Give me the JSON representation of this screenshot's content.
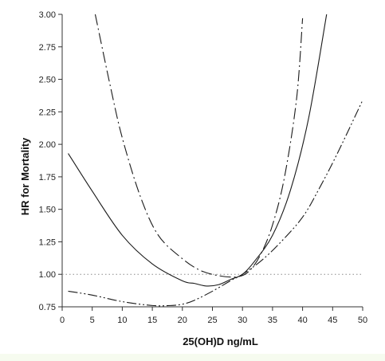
{
  "chart_data": {
    "type": "line",
    "xlabel": "25(OH)D ng/mL",
    "ylabel": "HR for Mortality",
    "xlim": [
      0,
      50
    ],
    "ylim": [
      0.75,
      3.0
    ],
    "x_ticks": [
      0,
      5,
      10,
      15,
      20,
      25,
      30,
      35,
      40,
      45,
      50
    ],
    "y_ticks": [
      "0.75",
      "1.00",
      "1.25",
      "1.50",
      "1.75",
      "2.00",
      "2.25",
      "2.50",
      "2.75",
      "3.00"
    ],
    "reference_line": {
      "y": 1.0,
      "style": "dotted"
    },
    "grid": false,
    "legend": "none",
    "series": [
      {
        "style": "solid",
        "points": [
          [
            1,
            1.93
          ],
          [
            5,
            1.64
          ],
          [
            10,
            1.3
          ],
          [
            15,
            1.08
          ],
          [
            20,
            0.95
          ],
          [
            22,
            0.93
          ],
          [
            24,
            0.91
          ],
          [
            26,
            0.92
          ],
          [
            28,
            0.96
          ],
          [
            30,
            1.0
          ],
          [
            32,
            1.1
          ],
          [
            35,
            1.3
          ],
          [
            38,
            1.65
          ],
          [
            41,
            2.2
          ],
          [
            44,
            3.0
          ]
        ]
      },
      {
        "style": "dash-dot",
        "points": [
          [
            5.5,
            3.0
          ],
          [
            8,
            2.45
          ],
          [
            10,
            2.05
          ],
          [
            13,
            1.6
          ],
          [
            16,
            1.3
          ],
          [
            20,
            1.12
          ],
          [
            23,
            1.03
          ],
          [
            26,
            0.99
          ],
          [
            29,
            0.98
          ],
          [
            31,
            1.02
          ],
          [
            33,
            1.15
          ],
          [
            35,
            1.38
          ],
          [
            37,
            1.75
          ],
          [
            39,
            2.35
          ],
          [
            40,
            2.97
          ]
        ]
      },
      {
        "style": "dash-dot-dot",
        "points": [
          [
            1,
            0.87
          ],
          [
            5,
            0.84
          ],
          [
            10,
            0.79
          ],
          [
            15,
            0.76
          ],
          [
            18,
            0.76
          ],
          [
            20,
            0.77
          ],
          [
            22,
            0.8
          ],
          [
            25,
            0.87
          ],
          [
            28,
            0.95
          ],
          [
            30,
            1.0
          ],
          [
            33,
            1.1
          ],
          [
            36,
            1.23
          ],
          [
            40,
            1.44
          ],
          [
            43,
            1.68
          ],
          [
            46,
            1.95
          ],
          [
            50,
            2.34
          ]
        ]
      }
    ],
    "colors": {
      "line": "#1a1a1a",
      "reference": "#8a8a8a",
      "footer_band": "#f6fbef"
    }
  }
}
